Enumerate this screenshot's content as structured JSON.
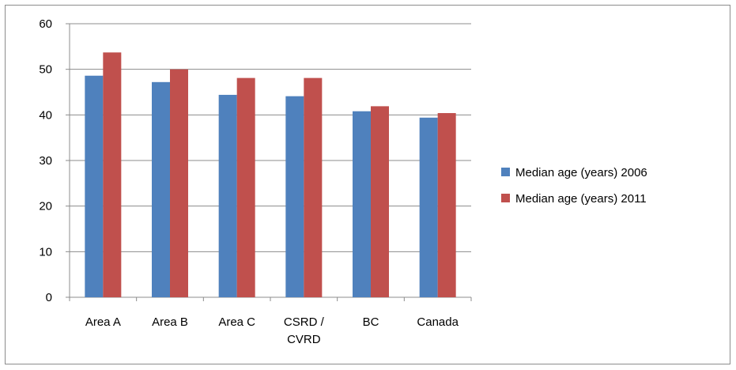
{
  "chart_data": {
    "type": "bar",
    "categories": [
      [
        "Area A"
      ],
      [
        "Area B"
      ],
      [
        "Area C"
      ],
      [
        "CSRD /",
        "CVRD"
      ],
      [
        "BC"
      ],
      [
        "Canada"
      ]
    ],
    "series": [
      {
        "name": "Median age (years) 2006",
        "color": "#4f81bd",
        "values": [
          48.6,
          47.2,
          44.4,
          44.1,
          40.8,
          39.4
        ]
      },
      {
        "name": "Median age (years) 2011",
        "color": "#c0504d",
        "values": [
          53.7,
          50.0,
          48.1,
          48.1,
          41.9,
          40.4
        ]
      }
    ],
    "ylim": [
      0,
      60
    ],
    "yticks": [
      0,
      10,
      20,
      30,
      40,
      50,
      60
    ],
    "grid": true,
    "legend_position": "right",
    "title": "",
    "xlabel": "",
    "ylabel": ""
  }
}
